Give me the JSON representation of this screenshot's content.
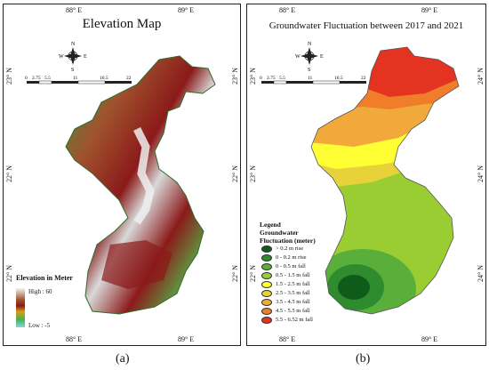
{
  "panel_a": {
    "title": "Elevation Map",
    "caption": "(a)",
    "top_ticks": [
      "88° E",
      "89° E"
    ],
    "bottom_ticks": [
      "88° E",
      "89° E"
    ],
    "left_ticks": [
      "23° N",
      "22° N",
      "22° N"
    ],
    "right_ticks": [
      "23° N",
      "22° N",
      "22° N"
    ],
    "scale_labels": [
      "0",
      "2.75",
      "5.5",
      "11",
      "16.5",
      "22"
    ],
    "legend": {
      "title": "Elevation in Meter",
      "high": "High : 60",
      "low": "Low : -5"
    }
  },
  "panel_b": {
    "title": "Groundwater Fluctuation between 2017 and 2021",
    "caption": "(b)",
    "top_ticks": [
      "88° E",
      "89° E"
    ],
    "bottom_ticks": [
      "88° E",
      "89° E"
    ],
    "left_ticks": [
      "23° N",
      "23° N",
      "22° N"
    ],
    "right_ticks": [
      "24° N",
      "24° N",
      "24° N"
    ],
    "scale_labels": [
      "0",
      "2.75",
      "5.5",
      "11",
      "16.5",
      "22"
    ],
    "legend": {
      "title_lines": [
        "Legend",
        "Groundwater",
        "Fluctuation (meter)"
      ],
      "items": [
        {
          "label": "> 0.2 m rise",
          "color": "#0f5c1a"
        },
        {
          "label": "0 - 0.2 m rise",
          "color": "#2e8b2e"
        },
        {
          "label": "0 - 0.5 m fall",
          "color": "#5aae3a"
        },
        {
          "label": "0.5 - 1.5 m fall",
          "color": "#9acd32"
        },
        {
          "label": "1.5 - 2.5 m fall",
          "color": "#ffff33"
        },
        {
          "label": "2.5 - 3.5 m fall",
          "color": "#e8d23a"
        },
        {
          "label": "3.5 - 4.5 m fall",
          "color": "#f2a93b"
        },
        {
          "label": "4.5 - 5.5 m fall",
          "color": "#ef7d2a"
        },
        {
          "label": "5.5 - 6.52 m fall",
          "color": "#e53322"
        }
      ]
    }
  },
  "compass_letters": {
    "n": "N",
    "s": "S",
    "e": "E",
    "w": "W"
  }
}
